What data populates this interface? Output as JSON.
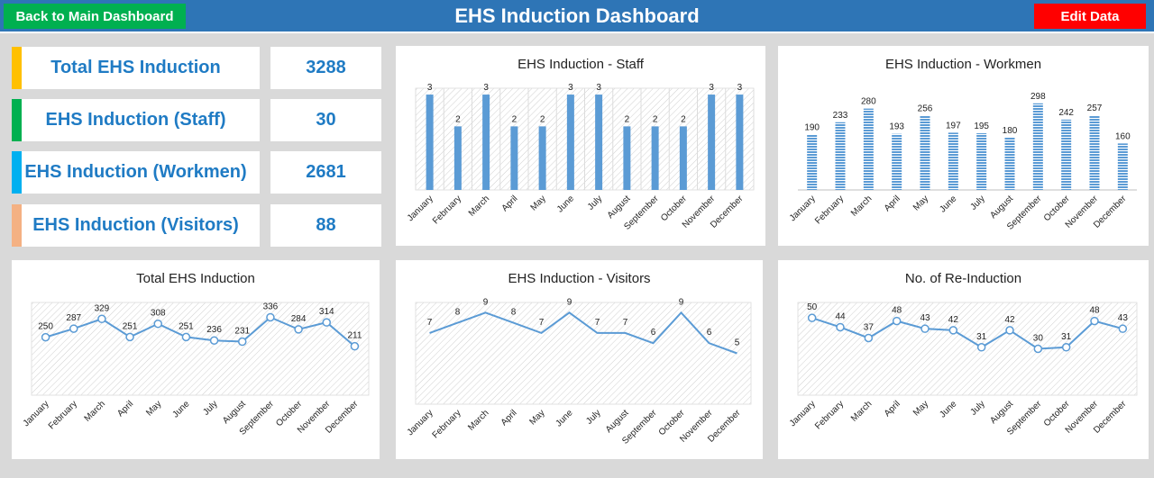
{
  "header": {
    "title": "EHS Induction Dashboard",
    "back_label": "Back to Main Dashboard",
    "edit_label": "Edit Data"
  },
  "kpis": [
    {
      "label": "Total EHS Induction",
      "value": "3288",
      "color": "#ffc000"
    },
    {
      "label": "EHS Induction (Staff)",
      "value": "30",
      "color": "#00b050"
    },
    {
      "label": "EHS Induction (Workmen)",
      "value": "2681",
      "color": "#00b0f0"
    },
    {
      "label": "EHS Induction (Visitors)",
      "value": "88",
      "color": "#f4b183"
    }
  ],
  "colors": {
    "series": "#5b9bd5",
    "grid_hatch": "#d0d0d0"
  },
  "chart_data": [
    {
      "type": "bar",
      "title": "EHS Induction - Staff",
      "categories": [
        "January",
        "February",
        "March",
        "April",
        "May",
        "June",
        "July",
        "August",
        "September",
        "October",
        "November",
        "December"
      ],
      "values": [
        3,
        2,
        3,
        2,
        2,
        3,
        3,
        2,
        2,
        2,
        3,
        3
      ],
      "ylim": [
        0,
        3.2
      ],
      "style": "solid"
    },
    {
      "type": "bar",
      "title": "EHS Induction - Workmen",
      "categories": [
        "January",
        "February",
        "March",
        "April",
        "May",
        "June",
        "July",
        "August",
        "September",
        "October",
        "November",
        "December"
      ],
      "values": [
        190,
        233,
        280,
        193,
        256,
        197,
        195,
        180,
        298,
        242,
        257,
        160
      ],
      "ylim": [
        0,
        350
      ],
      "style": "striped"
    },
    {
      "type": "line",
      "title": "Total EHS Induction",
      "categories": [
        "January",
        "February",
        "March",
        "April",
        "May",
        "June",
        "July",
        "August",
        "September",
        "October",
        "November",
        "December"
      ],
      "values": [
        250,
        287,
        329,
        251,
        308,
        251,
        236,
        231,
        336,
        284,
        314,
        211
      ],
      "ylim": [
        0,
        400
      ],
      "markers": true
    },
    {
      "type": "line",
      "title": "EHS Induction - Visitors",
      "categories": [
        "January",
        "February",
        "March",
        "April",
        "May",
        "June",
        "July",
        "August",
        "September",
        "October",
        "November",
        "December"
      ],
      "values": [
        7,
        8,
        9,
        8,
        7,
        9,
        7,
        7,
        6,
        9,
        6,
        5
      ],
      "ylim": [
        0,
        10
      ],
      "markers": false
    },
    {
      "type": "line",
      "title": "No. of Re-Induction",
      "categories": [
        "January",
        "February",
        "March",
        "April",
        "May",
        "June",
        "July",
        "August",
        "September",
        "October",
        "November",
        "December"
      ],
      "values": [
        50,
        44,
        37,
        48,
        43,
        42,
        31,
        42,
        30,
        31,
        48,
        43
      ],
      "ylim": [
        0,
        60
      ],
      "markers": true
    }
  ]
}
